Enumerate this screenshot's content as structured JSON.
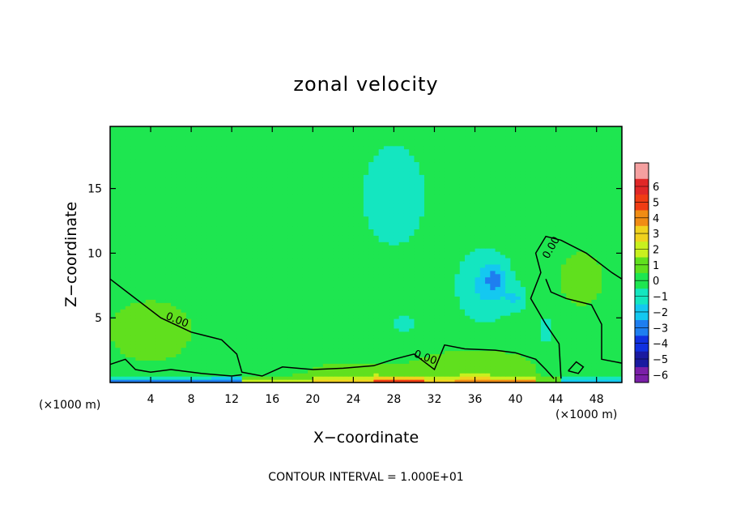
{
  "chart_data": {
    "type": "heatmap",
    "title": "zonal velocity",
    "xlabel": "X−coordinate",
    "ylabel": "Z−coordinate",
    "x_unit_left": "(×1000 m)",
    "x_unit_right": "(×1000 m)",
    "footer": "CONTOUR INTERVAL = 1.000E+01",
    "xlim": [
      0,
      50.5
    ],
    "ylim": [
      0,
      19.8
    ],
    "x_ticks": [
      4,
      8,
      12,
      16,
      20,
      24,
      28,
      32,
      36,
      40,
      44,
      48
    ],
    "x_tick_labels": [
      "4",
      "8",
      "12",
      "16",
      "20",
      "24",
      "28",
      "32",
      "36",
      "40",
      "44",
      "48"
    ],
    "y_ticks": [
      5,
      10,
      15
    ],
    "y_tick_labels": [
      "5",
      "10",
      "15"
    ],
    "contour_label": "0.00",
    "colorbar": {
      "levels": [
        -6,
        -5,
        -4,
        -3,
        -2,
        -1,
        0,
        1,
        2,
        3,
        4,
        5,
        6
      ],
      "labels": [
        "−6",
        "−5",
        "−4",
        "−3",
        "−2",
        "−1",
        "0",
        "1",
        "2",
        "3",
        "4",
        "5",
        "6"
      ],
      "colors": [
        "#7a1fa8",
        "#1a1aa0",
        "#1030e0",
        "#1e7ef0",
        "#14c8f0",
        "#14e6c0",
        "#1ee650",
        "#60e01e",
        "#c8f01e",
        "#f0d21e",
        "#f08c14",
        "#f03c14",
        "#e02828",
        "#f5a0a0"
      ]
    },
    "background_value": -0.5,
    "blobs": [
      {
        "x": 28.0,
        "z": 14.5,
        "sx": 4.0,
        "sz": 5.0,
        "v": -0.9
      },
      {
        "x": 37.0,
        "z": 7.5,
        "sx": 2.6,
        "sz": 2.6,
        "v": -1.7
      },
      {
        "x": 38.0,
        "z": 8.0,
        "sx": 1.0,
        "sz": 1.2,
        "v": -1.6
      },
      {
        "x": 40.0,
        "z": 6.5,
        "sx": 1.0,
        "sz": 0.9,
        "v": -1.3
      },
      {
        "x": 43.0,
        "z": 4.0,
        "sx": 0.8,
        "sz": 1.2,
        "v": -1.1
      },
      {
        "x": 29.0,
        "z": 4.5,
        "sx": 2.0,
        "sz": 1.5,
        "v": -0.6
      },
      {
        "x": 4.0,
        "z": 4.0,
        "sx": 7.0,
        "sz": 4.0,
        "v": 0.7
      },
      {
        "x": 46.5,
        "z": 8.0,
        "sx": 3.0,
        "sz": 3.0,
        "v": 0.8
      },
      {
        "x": 36.0,
        "z": 1.2,
        "sx": 6.0,
        "sz": 1.4,
        "v": 1.3
      },
      {
        "x": 24.0,
        "z": 0.8,
        "sx": 5.0,
        "sz": 0.9,
        "v": 1.0
      }
    ],
    "surface_bands": [
      {
        "x0": 0.0,
        "x1": 13.0,
        "v": -3.6
      },
      {
        "x0": 13.0,
        "x1": 20.0,
        "v": 1.5
      },
      {
        "x0": 20.0,
        "x1": 26.0,
        "v": 3.2
      },
      {
        "x0": 26.0,
        "x1": 31.0,
        "v": 4.6
      },
      {
        "x0": 31.0,
        "x1": 34.0,
        "v": 2.6
      },
      {
        "x0": 34.0,
        "x1": 42.0,
        "v": 3.6
      },
      {
        "x0": 42.0,
        "x1": 44.5,
        "v": 1.0
      },
      {
        "x0": 44.5,
        "x1": 50.5,
        "v": -3.0
      }
    ],
    "contours": [
      {
        "points": [
          [
            0,
            8.0
          ],
          [
            2,
            6.8
          ],
          [
            5,
            5.0
          ],
          [
            8,
            3.9
          ],
          [
            11,
            3.3
          ],
          [
            12.5,
            2.2
          ],
          [
            13,
            0.8
          ],
          [
            15,
            0.5
          ],
          [
            17,
            1.2
          ],
          [
            20,
            1.0
          ],
          [
            23,
            1.1
          ],
          [
            26,
            1.3
          ],
          [
            28,
            1.8
          ],
          [
            30,
            2.2
          ],
          [
            32,
            1.0
          ],
          [
            33,
            2.9
          ],
          [
            35,
            2.6
          ],
          [
            38,
            2.5
          ],
          [
            40,
            2.3
          ],
          [
            42,
            1.8
          ],
          [
            43,
            1.0
          ],
          [
            43.8,
            0.3
          ]
        ]
      },
      {
        "points": [
          [
            0,
            1.4
          ],
          [
            1.5,
            1.8
          ],
          [
            2.5,
            1.0
          ],
          [
            4,
            0.8
          ],
          [
            6,
            1.0
          ],
          [
            9,
            0.7
          ],
          [
            12,
            0.5
          ],
          [
            13,
            0.6
          ]
        ]
      },
      {
        "points": [
          [
            44.5,
            0.3
          ],
          [
            44.3,
            3.0
          ],
          [
            43.0,
            4.5
          ],
          [
            41.5,
            6.5
          ],
          [
            42.5,
            8.5
          ],
          [
            42.0,
            10.0
          ],
          [
            43.0,
            11.3
          ],
          [
            44.5,
            11.0
          ],
          [
            47.0,
            10.0
          ],
          [
            49.5,
            8.5
          ],
          [
            50.5,
            8.0
          ]
        ]
      },
      {
        "points": [
          [
            50.5,
            1.5
          ],
          [
            48.5,
            1.8
          ],
          [
            48.5,
            4.5
          ],
          [
            47.5,
            6.0
          ],
          [
            45.0,
            6.5
          ],
          [
            43.5,
            7.0
          ],
          [
            43.0,
            8.0
          ]
        ]
      },
      {
        "points": [
          [
            45.2,
            0.9
          ],
          [
            46.0,
            1.6
          ],
          [
            46.7,
            1.2
          ],
          [
            46.2,
            0.7
          ],
          [
            45.2,
            0.9
          ]
        ]
      }
    ],
    "contour_labels": [
      {
        "x": 6.5,
        "z": 4.6,
        "angle": 22
      },
      {
        "x": 31.0,
        "z": 1.7,
        "angle": 20
      },
      {
        "x": 43.8,
        "z": 10.3,
        "angle": -60
      }
    ]
  }
}
